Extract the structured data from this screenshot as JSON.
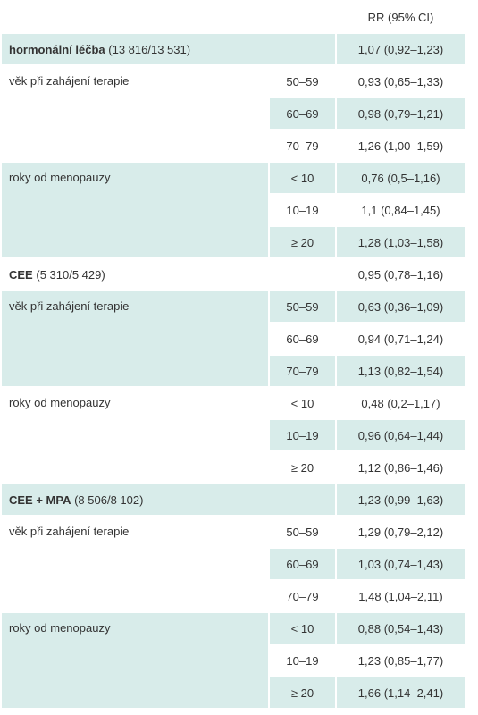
{
  "header": {
    "rr": "RR (95% CI)"
  },
  "groups": [
    {
      "name": "hormonální léčba",
      "count": "(13 816/13 531)",
      "rr": "1,07 (0,92–1,23)",
      "subgroups": [
        {
          "label": "věk při zahájení terapie",
          "rows": [
            {
              "range": "50–59",
              "rr": "0,93 (0,65–1,33)"
            },
            {
              "range": "60–69",
              "rr": "0,98 (0,79–1,21)"
            },
            {
              "range": "70–79",
              "rr": "1,26 (1,00–1,59)"
            }
          ]
        },
        {
          "label": "roky od menopauzy",
          "rows": [
            {
              "range": "< 10",
              "rr": "0,76 (0,5–1,16)"
            },
            {
              "range": "10–19",
              "rr": "1,1 (0,84–1,45)"
            },
            {
              "range": "≥ 20",
              "rr": "1,28 (1,03–1,58)"
            }
          ]
        }
      ]
    },
    {
      "name": "CEE",
      "count": "(5 310/5 429)",
      "rr": "0,95 (0,78–1,16)",
      "subgroups": [
        {
          "label": "věk při zahájení terapie",
          "rows": [
            {
              "range": "50–59",
              "rr": "0,63 (0,36–1,09)"
            },
            {
              "range": "60–69",
              "rr": "0,94 (0,71–1,24)"
            },
            {
              "range": "70–79",
              "rr": "1,13 (0,82–1,54)"
            }
          ]
        },
        {
          "label": "roky od menopauzy",
          "rows": [
            {
              "range": "< 10",
              "rr": "0,48 (0,2–1,17)"
            },
            {
              "range": "10–19",
              "rr": "0,96 (0,64–1,44)"
            },
            {
              "range": "≥ 20",
              "rr": "1,12 (0,86–1,46)"
            }
          ]
        }
      ]
    },
    {
      "name": "CEE + MPA",
      "count": "(8 506/8 102)",
      "rr": "1,23 (0,99–1,63)",
      "subgroups": [
        {
          "label": "věk při zahájení terapie",
          "rows": [
            {
              "range": "50–59",
              "rr": "1,29 (0,79–2,12)"
            },
            {
              "range": "60–69",
              "rr": "1,03 (0,74–1,43)"
            },
            {
              "range": "70–79",
              "rr": "1,48 (1,04–2,11)"
            }
          ]
        },
        {
          "label": "roky od menopauzy",
          "rows": [
            {
              "range": "< 10",
              "rr": "0,88 (0,54–1,43)"
            },
            {
              "range": "10–19",
              "rr": "1,23 (0,85–1,77)"
            },
            {
              "range": "≥ 20",
              "rr": "1,66 (1,14–2,41)"
            }
          ]
        }
      ]
    }
  ]
}
